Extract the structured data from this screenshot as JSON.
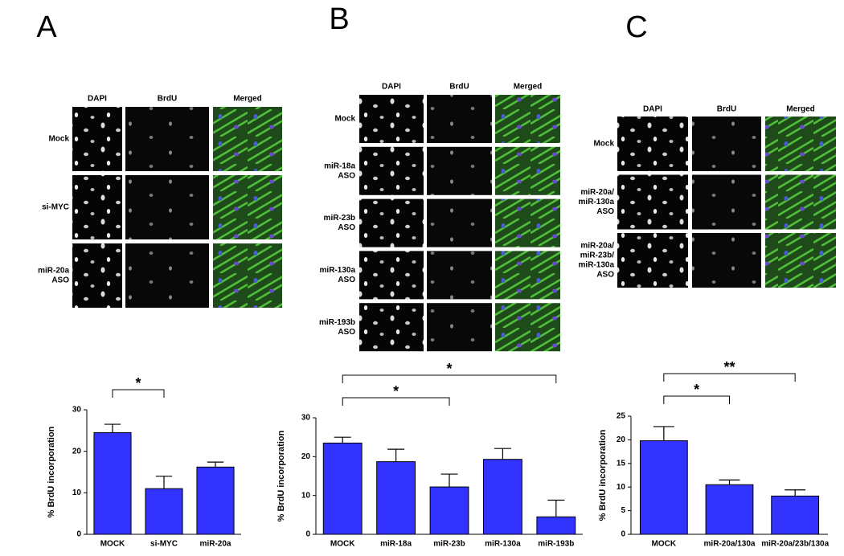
{
  "panels": [
    {
      "letter": "A",
      "columns": [
        "DAPI",
        "BrdU",
        "Merged"
      ],
      "rows": [
        [
          "Mock"
        ],
        [
          "si-MYC"
        ],
        [
          "miR-20a",
          "ASO"
        ]
      ]
    },
    {
      "letter": "B",
      "columns": [
        "DAPI",
        "BrdU",
        "Merged"
      ],
      "rows": [
        [
          "Mock"
        ],
        [
          "miR-18a",
          "ASO"
        ],
        [
          "miR-23b",
          "ASO"
        ],
        [
          "miR-130a",
          "ASO"
        ],
        [
          "miR-193b",
          "ASO"
        ]
      ]
    },
    {
      "letter": "C",
      "columns": [
        "DAPI",
        "BrdU",
        "Merged"
      ],
      "rows": [
        [
          "Mock"
        ],
        [
          "miR-20a/",
          "miR-130a",
          "ASO"
        ],
        [
          "miR-20a/",
          "miR-23b/",
          "miR-130a",
          "ASO"
        ]
      ]
    }
  ],
  "chart_data": [
    {
      "type": "bar",
      "ylabel": "% BrdU incorporation",
      "color": "#3333ff",
      "categories": [
        "MOCK",
        "si-MYC",
        "miR-20a"
      ],
      "values": [
        24.5,
        11,
        16.2
      ],
      "errors": [
        2,
        3,
        1.2
      ],
      "ylim": [
        0,
        30
      ],
      "yticks": [
        0,
        10,
        20,
        30
      ],
      "significance": [
        {
          "between": [
            "MOCK",
            "si-MYC"
          ],
          "label": "*"
        }
      ]
    },
    {
      "type": "bar",
      "ylabel": "% BrdU incorporation",
      "color": "#3333ff",
      "categories": [
        "MOCK",
        "miR-18a",
        "miR-23b",
        "miR-130a",
        "miR-193b"
      ],
      "values": [
        23.5,
        18.7,
        12.2,
        19.3,
        4.5
      ],
      "errors": [
        1.5,
        3.2,
        3.3,
        2.8,
        4.3
      ],
      "ylim": [
        0,
        30
      ],
      "yticks": [
        0,
        10,
        20,
        30
      ],
      "significance": [
        {
          "between": [
            "MOCK",
            "miR-23b"
          ],
          "label": "*"
        },
        {
          "between": [
            "MOCK",
            "miR-193b"
          ],
          "label": "*"
        }
      ]
    },
    {
      "type": "bar",
      "ylabel": "% BrdU incorporation",
      "color": "#3333ff",
      "categories": [
        "MOCK",
        "miR-20a/130a",
        "miR-20a/23b/130a"
      ],
      "values": [
        19.8,
        10.5,
        8.1
      ],
      "errors": [
        3,
        1,
        1.3
      ],
      "ylim": [
        0,
        25
      ],
      "yticks": [
        0,
        5,
        10,
        15,
        20,
        25
      ],
      "significance": [
        {
          "between": [
            "MOCK",
            "miR-20a/130a"
          ],
          "label": "*"
        },
        {
          "between": [
            "MOCK",
            "miR-20a/23b/130a"
          ],
          "label": "**"
        }
      ]
    }
  ]
}
